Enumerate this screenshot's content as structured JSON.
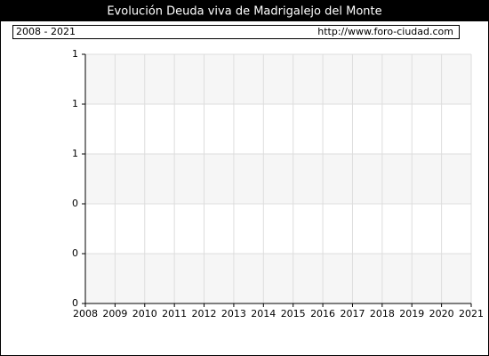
{
  "chart_data": {
    "type": "line",
    "title": "Evolución Deuda viva de Madrigalejo del Monte",
    "subtitle": "2008 - 2021",
    "source": "http://www.foro-ciudad.com",
    "series": [],
    "xlim": [
      2008,
      2021
    ],
    "xticks": [
      2008,
      2009,
      2010,
      2011,
      2012,
      2013,
      2014,
      2015,
      2016,
      2017,
      2018,
      2019,
      2020,
      2021
    ],
    "ylim": [
      0,
      1
    ],
    "yticks": [
      0,
      {
        "value": 0.2,
        "label": "0"
      },
      {
        "value": 0.4,
        "label": "0"
      },
      {
        "value": 0.6,
        "label": "1"
      },
      {
        "value": 0.8,
        "label": "1"
      },
      1
    ],
    "grid": true
  }
}
